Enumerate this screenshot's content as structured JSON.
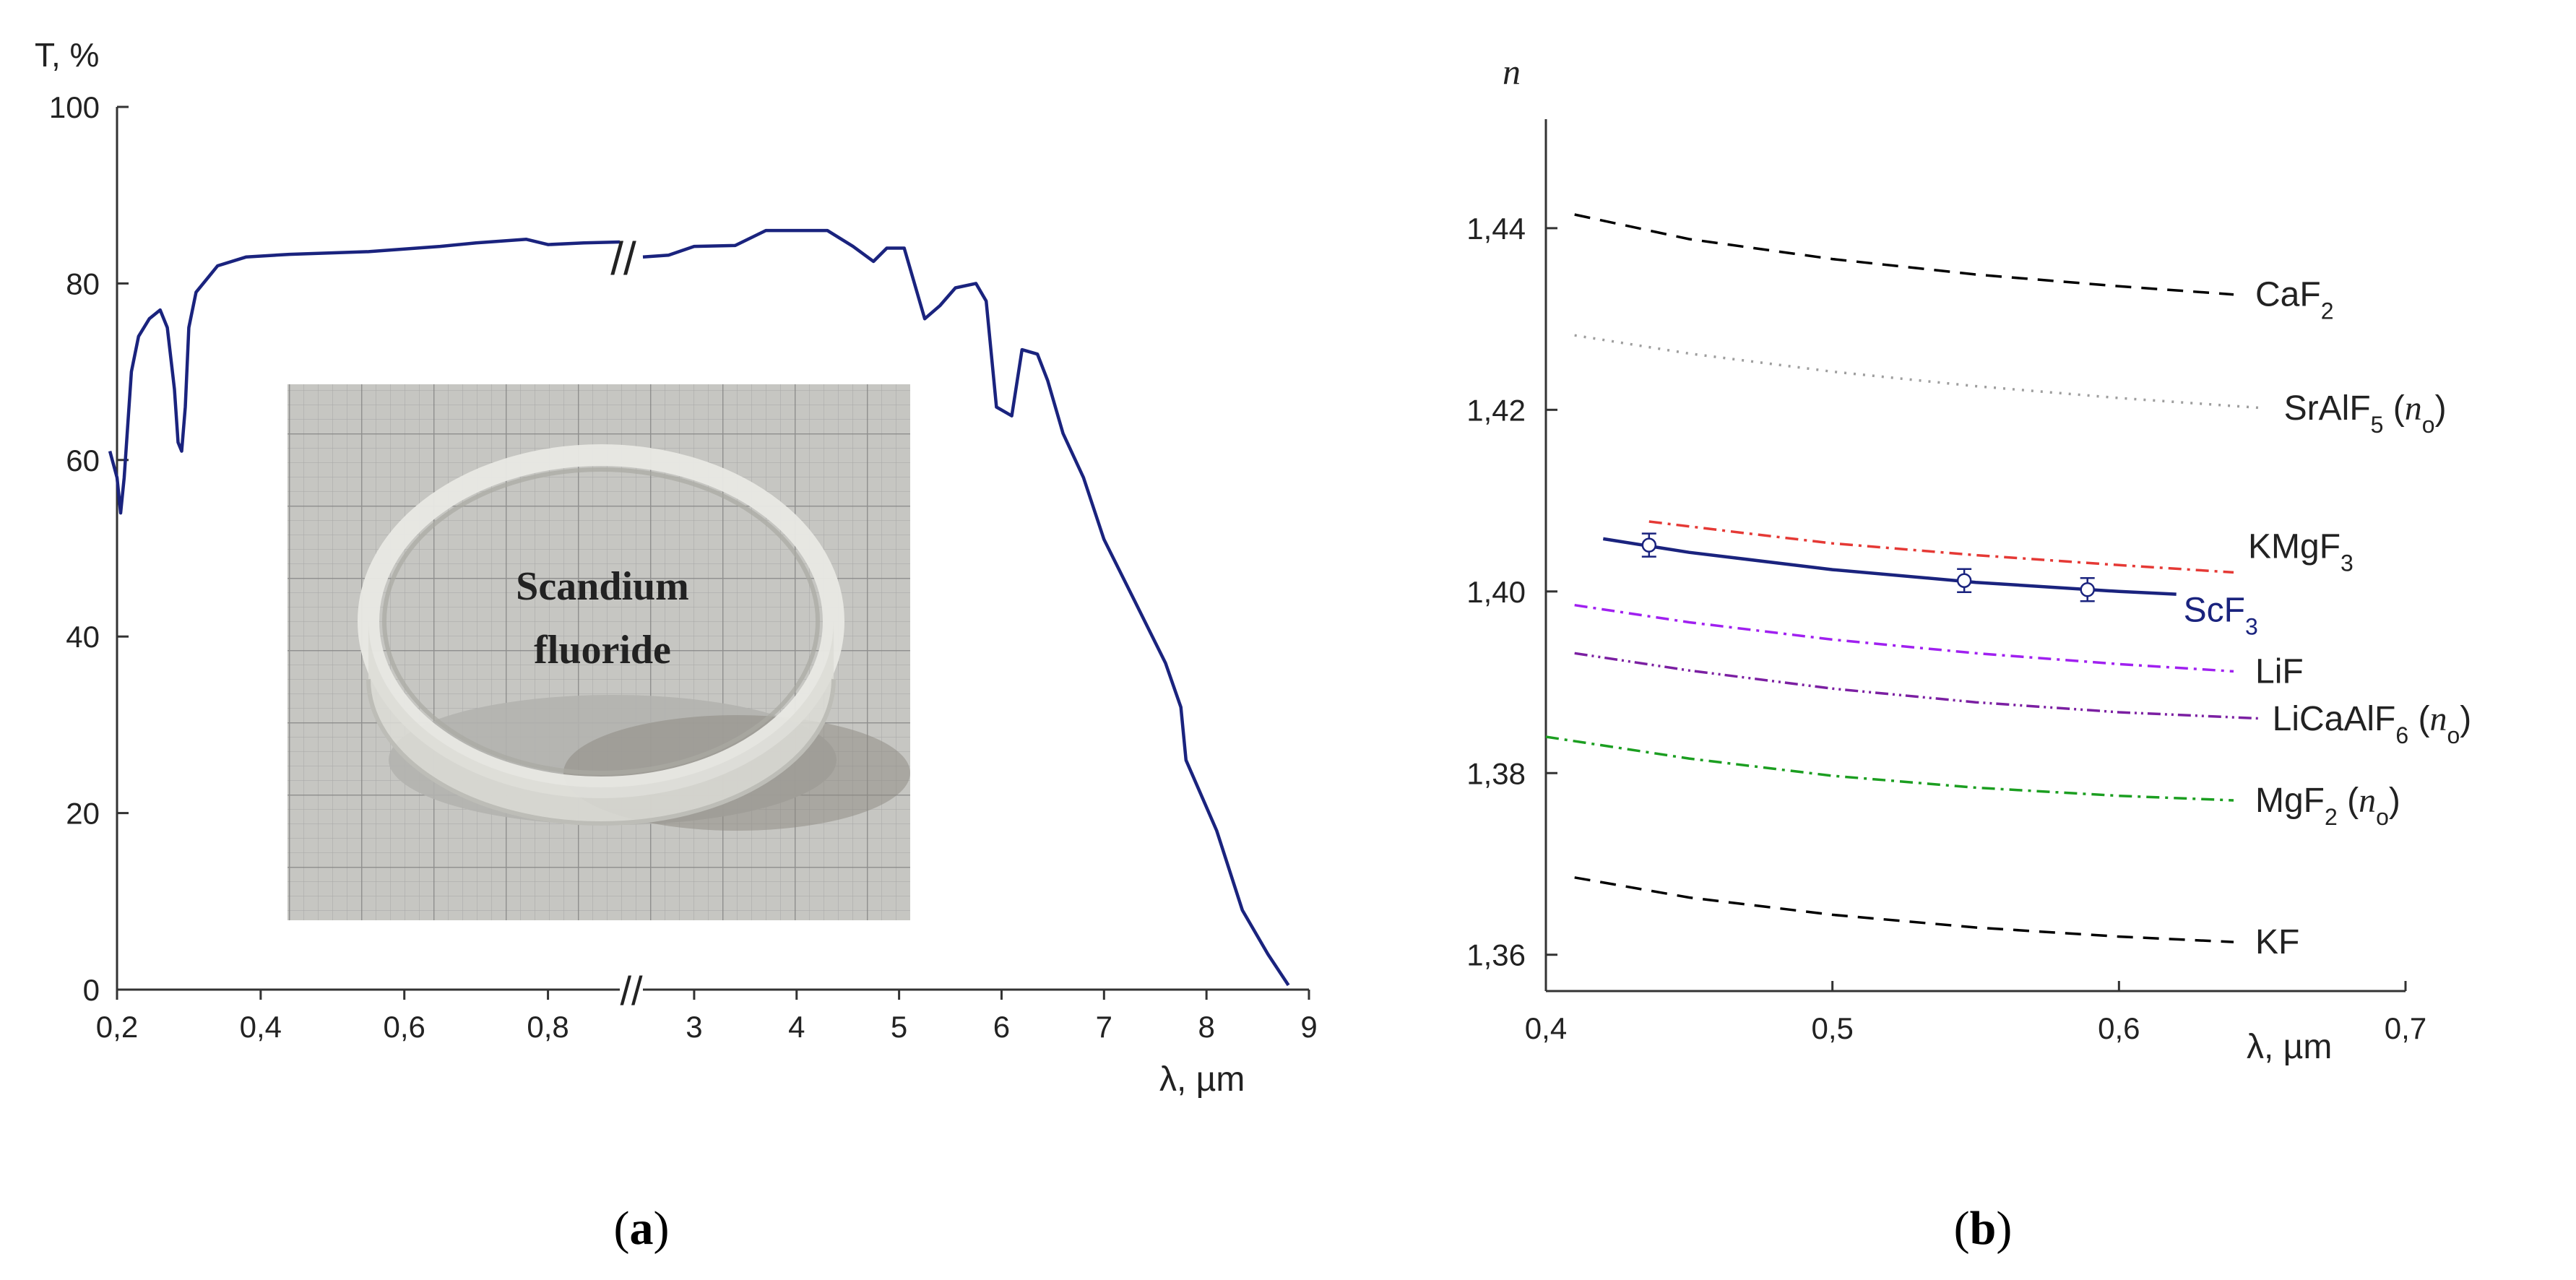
{
  "chart_data": [
    {
      "id": "a",
      "type": "line",
      "caption_parts": [
        "(",
        "a",
        ")"
      ],
      "ylabel": "T, %",
      "xlabel": "λ, µm",
      "ylim": [
        0,
        100
      ],
      "yticks": [
        "0",
        "20",
        "40",
        "60",
        "80",
        "100"
      ],
      "x_break": "//",
      "x_segments": [
        {
          "range": [
            0.2,
            0.9
          ],
          "ticks": [
            "0,2",
            "0,4",
            "0,6",
            "0,8"
          ],
          "tick_values": [
            0.2,
            0.4,
            0.6,
            0.8
          ]
        },
        {
          "range": [
            2.5,
            9
          ],
          "ticks": [
            "3",
            "4",
            "5",
            "6",
            "7",
            "8",
            "9"
          ],
          "tick_values": [
            3,
            4,
            5,
            6,
            7,
            8,
            9
          ]
        }
      ],
      "inset_text": [
        "Scandium",
        "fluoride"
      ],
      "series": [
        {
          "name": "ScF3 transmission",
          "color": "#1a237e",
          "segment1": [
            [
              0.19,
              61
            ],
            [
              0.2,
              58
            ],
            [
              0.205,
              54
            ],
            [
              0.21,
              58
            ],
            [
              0.22,
              70
            ],
            [
              0.23,
              74
            ],
            [
              0.245,
              76
            ],
            [
              0.26,
              77
            ],
            [
              0.27,
              75
            ],
            [
              0.28,
              68
            ],
            [
              0.285,
              62
            ],
            [
              0.29,
              61
            ],
            [
              0.295,
              66
            ],
            [
              0.3,
              75
            ],
            [
              0.31,
              79
            ],
            [
              0.32,
              80
            ],
            [
              0.33,
              81
            ],
            [
              0.34,
              82
            ],
            [
              0.38,
              83
            ],
            [
              0.44,
              83.3
            ],
            [
              0.55,
              83.6
            ],
            [
              0.65,
              84.2
            ],
            [
              0.7,
              84.6
            ],
            [
              0.77,
              85
            ],
            [
              0.8,
              84.4
            ],
            [
              0.85,
              84.6
            ],
            [
              0.9,
              84.7
            ]
          ],
          "segment2": [
            [
              2.5,
              83
            ],
            [
              2.75,
              83.2
            ],
            [
              3.0,
              84.2
            ],
            [
              3.4,
              84.3
            ],
            [
              3.7,
              86
            ],
            [
              4.0,
              86
            ],
            [
              4.3,
              86
            ],
            [
              4.55,
              84.2
            ],
            [
              4.75,
              82.5
            ],
            [
              4.88,
              84
            ],
            [
              5.05,
              84
            ],
            [
              5.25,
              76
            ],
            [
              5.4,
              77.5
            ],
            [
              5.55,
              79.5
            ],
            [
              5.75,
              80
            ],
            [
              5.85,
              78
            ],
            [
              5.9,
              72
            ],
            [
              5.95,
              66
            ],
            [
              6.1,
              65
            ],
            [
              6.2,
              72.5
            ],
            [
              6.35,
              72
            ],
            [
              6.45,
              69
            ],
            [
              6.6,
              63
            ],
            [
              6.8,
              58
            ],
            [
              7.0,
              51
            ],
            [
              7.3,
              44
            ],
            [
              7.6,
              37
            ],
            [
              7.75,
              32
            ],
            [
              7.8,
              26
            ],
            [
              8.1,
              18
            ],
            [
              8.35,
              9
            ],
            [
              8.6,
              4
            ],
            [
              8.8,
              0.5
            ]
          ]
        }
      ]
    },
    {
      "id": "b",
      "type": "line",
      "caption_parts": [
        "(",
        "b",
        ")"
      ],
      "ylabel": "n",
      "xlabel": "λ, µm",
      "xlim": [
        0.4,
        0.7
      ],
      "ylim": [
        1.356,
        1.452
      ],
      "xticks": [
        "0,4",
        "0,5",
        "0,6",
        "0,7"
      ],
      "xtick_values": [
        0.4,
        0.5,
        0.6,
        0.7
      ],
      "yticks": [
        "1,36",
        "1,38",
        "1,40",
        "1,42",
        "1,44"
      ],
      "ytick_values": [
        1.36,
        1.38,
        1.4,
        1.42,
        1.44
      ],
      "series": [
        {
          "name": "CaF2",
          "label_main": "CaF",
          "label_sub": "2",
          "label_tail": "",
          "label_sub2": "",
          "label_end": "",
          "color": "#000000",
          "dash": "22 14",
          "x": [
            0.41,
            0.45,
            0.5,
            0.55,
            0.6,
            0.64
          ],
          "y": [
            1.4415,
            1.4388,
            1.4366,
            1.4349,
            1.4336,
            1.4327
          ]
        },
        {
          "name": "SrAlF5 (no)",
          "label_main": "SrAlF",
          "label_sub": "5",
          "label_tail": " (",
          "label_sub2": "o",
          "label_end": ")",
          "color": "#9e9e9e",
          "dash": "3 10",
          "x": [
            0.41,
            0.45,
            0.5,
            0.55,
            0.6,
            0.65
          ],
          "y": [
            1.4282,
            1.4262,
            1.4242,
            1.4226,
            1.4213,
            1.4202
          ]
        },
        {
          "name": "KMgF3",
          "label_main": "KMgF",
          "label_sub": "3",
          "label_tail": "",
          "label_sub2": "",
          "label_end": "",
          "color": "#e53935",
          "dash": "18 8 4 8",
          "x": [
            0.436,
            0.47,
            0.5,
            0.55,
            0.6,
            0.64
          ],
          "y": [
            1.4077,
            1.4064,
            1.4053,
            1.404,
            1.4029,
            1.4021
          ]
        },
        {
          "name": "ScF3",
          "label_main": "ScF",
          "label_sub": "3",
          "label_tail": "",
          "label_sub2": "",
          "label_end": "",
          "color": "#1a237e",
          "dash": "",
          "x": [
            0.42,
            0.45,
            0.5,
            0.55,
            0.6,
            0.62
          ],
          "y": [
            1.4058,
            1.4043,
            1.4024,
            1.401,
            1.4,
            1.3997
          ]
        },
        {
          "name": "LiF",
          "label_main": "LiF",
          "label_sub": "",
          "label_tail": "",
          "label_sub2": "",
          "label_end": "",
          "color": "#a020f0",
          "dash": "18 8 4 8",
          "x": [
            0.41,
            0.45,
            0.5,
            0.55,
            0.6,
            0.64
          ],
          "y": [
            1.3985,
            1.3966,
            1.3947,
            1.3932,
            1.392,
            1.3912
          ]
        },
        {
          "name": "LiCaAlF6 (no)",
          "label_main": "LiCaAlF",
          "label_sub": "6",
          "label_tail": " (",
          "label_sub2": "o",
          "label_end": ")",
          "color": "#7b1fa2",
          "dash": "18 6 3 6 3 6",
          "x": [
            0.41,
            0.45,
            0.5,
            0.55,
            0.6,
            0.65
          ],
          "y": [
            1.3932,
            1.3913,
            1.3893,
            1.3878,
            1.3867,
            1.386
          ]
        },
        {
          "name": "MgF2 (no)",
          "label_main": "MgF",
          "label_sub": "2",
          "label_tail": " (",
          "label_sub2": "o",
          "label_end": ")",
          "color": "#1b9e20",
          "dash": "18 8 4 8",
          "x": [
            0.4,
            0.45,
            0.5,
            0.55,
            0.6,
            0.64
          ],
          "y": [
            1.384,
            1.3816,
            1.3797,
            1.3784,
            1.3775,
            1.377
          ]
        },
        {
          "name": "KF",
          "label_main": "KF",
          "label_sub": "",
          "label_tail": "",
          "label_sub2": "",
          "label_end": "",
          "color": "#000000",
          "dash": "22 14",
          "x": [
            0.41,
            0.45,
            0.5,
            0.55,
            0.6,
            0.64
          ],
          "y": [
            1.3685,
            1.3663,
            1.3644,
            1.363,
            1.362,
            1.3614
          ]
        }
      ],
      "measured_points": {
        "x": [
          0.436,
          0.546,
          0.589
        ],
        "y": [
          1.4051,
          1.4012,
          1.4002
        ],
        "color": "#1a237e"
      }
    }
  ]
}
